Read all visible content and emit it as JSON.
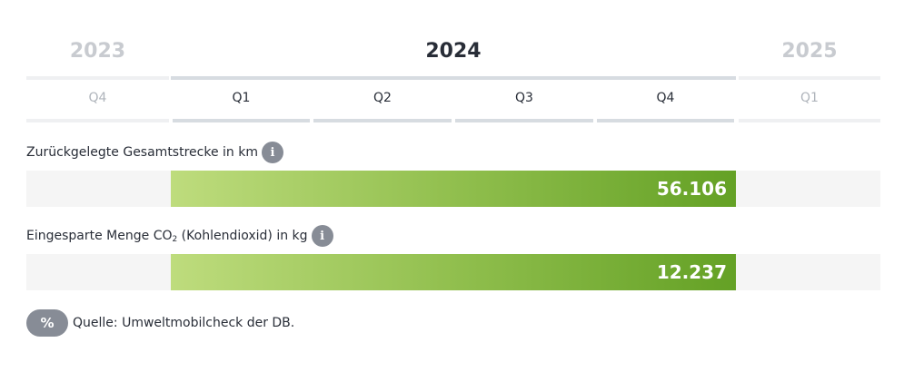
{
  "years": [
    {
      "label": "2023",
      "state": "inactive"
    },
    {
      "label": "2024",
      "state": "active"
    },
    {
      "label": "2025",
      "state": "inactive"
    }
  ],
  "quarters": [
    {
      "label": "Q4",
      "state": "inactive"
    },
    {
      "label": "Q1",
      "state": "active"
    },
    {
      "label": "Q2",
      "state": "active"
    },
    {
      "label": "Q3",
      "state": "active"
    },
    {
      "label": "Q4",
      "state": "active"
    },
    {
      "label": "Q1",
      "state": "inactive"
    }
  ],
  "metrics": [
    {
      "label_prefix": "Zurückgelegte Gesamtstrecke in km",
      "info_icon": "i",
      "value": "56.106"
    },
    {
      "label_prefix": "Eingesparte Menge CO",
      "label_sub": "2",
      "label_suffix": " (Kohlendioxid) in kg",
      "info_icon": "i",
      "value": "12.237"
    }
  ],
  "source": {
    "icon": "%",
    "text": "Quelle: Umweltmobilcheck der DB."
  },
  "colors": {
    "bar_gradient_start": "#bedc7d",
    "bar_gradient_end": "#64a125",
    "info_badge": "#878c96",
    "track": "#f5f5f5"
  }
}
